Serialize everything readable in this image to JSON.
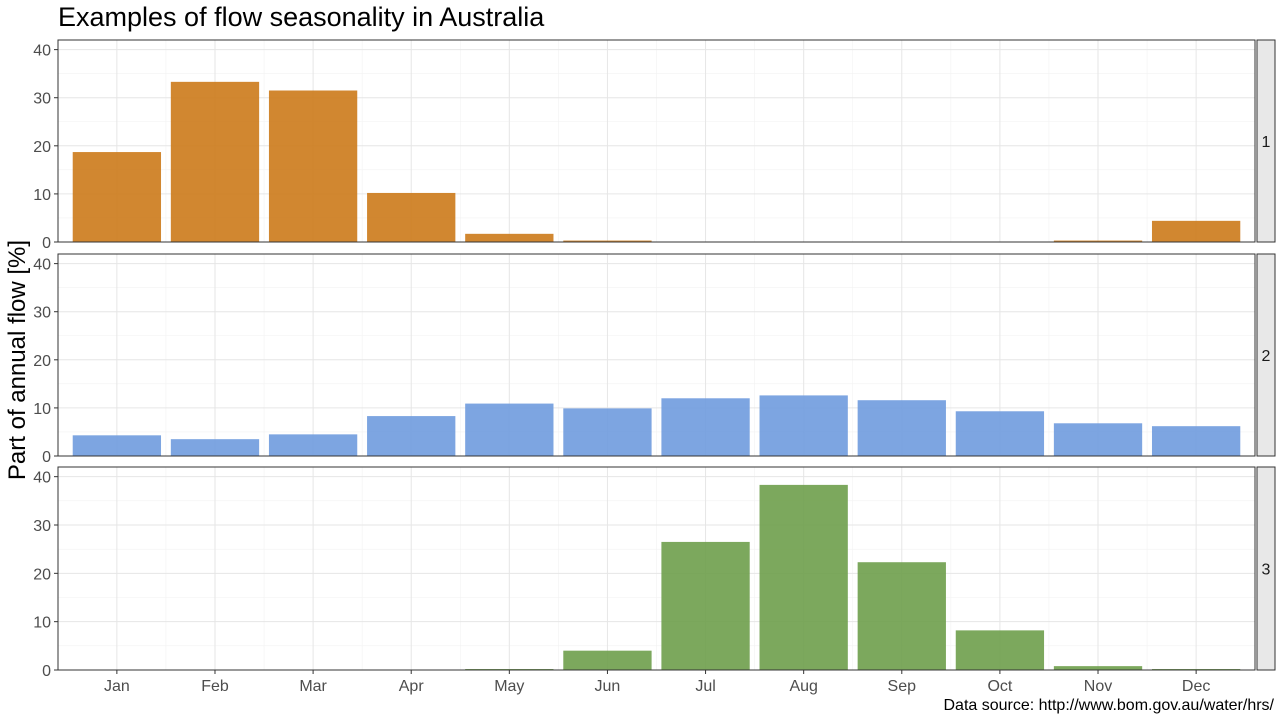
{
  "chart_data": {
    "type": "bar",
    "title": "Examples of flow seasonality in Australia",
    "ylabel": "Part of annual flow [%]",
    "xlabel": "",
    "caption": "Data source: http://www.bom.gov.au/water/hrs/",
    "categories": [
      "Jan",
      "Feb",
      "Mar",
      "Apr",
      "May",
      "Jun",
      "Jul",
      "Aug",
      "Sep",
      "Oct",
      "Nov",
      "Dec"
    ],
    "ylim": [
      0,
      42
    ],
    "yticks": [
      0,
      10,
      20,
      30,
      40
    ],
    "grid": true,
    "legend": "none",
    "series": [
      {
        "name": "1",
        "color": "#CC7A1A",
        "values": [
          18.7,
          33.3,
          31.5,
          10.2,
          1.7,
          0.3,
          0.1,
          0.1,
          0.1,
          0.1,
          0.3,
          4.4
        ]
      },
      {
        "name": "2",
        "color": "#6F9BDE",
        "values": [
          4.3,
          3.5,
          4.5,
          8.3,
          10.9,
          9.9,
          12.0,
          12.6,
          11.6,
          9.3,
          6.8,
          6.2
        ]
      },
      {
        "name": "3",
        "color": "#6E9E4B",
        "values": [
          0.0,
          0.0,
          0.0,
          0.0,
          0.2,
          4.0,
          26.5,
          38.3,
          22.3,
          8.2,
          0.8,
          0.2
        ]
      }
    ]
  }
}
